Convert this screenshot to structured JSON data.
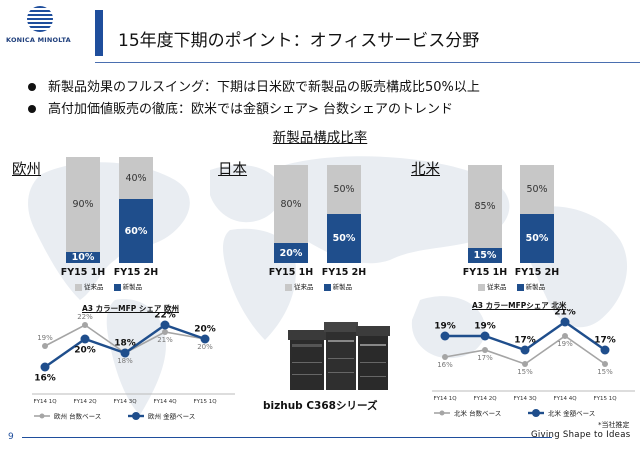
{
  "logo": {
    "brand": "KONICA MINOLTA"
  },
  "title": "15年度下期のポイント：オフィスサービス分野",
  "bullets": [
    "新製品効果のフルスイング：下期は日米欧で新製品の販売構成比50%以上",
    "高付加価値販売の徹底：欧米では金額シェア> 台数シェアのトレンド"
  ],
  "subtitle": "新製品構成比率",
  "colors": {
    "new": "#1f4e8c",
    "old": "#c7c7c7",
    "accent": "#1f4e9c",
    "light_line": "#a5a5a5"
  },
  "bar_legend": {
    "old": "従来品",
    "new": "新製品"
  },
  "regions": [
    {
      "name": "欧州",
      "bars": [
        {
          "label": "FY15 1H",
          "old": "90%",
          "new": "10%",
          "new_share": 10
        },
        {
          "label": "FY15 2H",
          "old": "40%",
          "new": "60%",
          "new_share": 60
        }
      ]
    },
    {
      "name": "日本",
      "bars": [
        {
          "label": "FY15 1H",
          "old": "80%",
          "new": "20%",
          "new_share": 20
        },
        {
          "label": "FY15 2H",
          "old": "50%",
          "new": "50%",
          "new_share": 50
        }
      ]
    },
    {
      "name": "北米",
      "bars": [
        {
          "label": "FY15 1H",
          "old": "85%",
          "new": "15%",
          "new_share": 15
        },
        {
          "label": "FY15 2H",
          "old": "50%",
          "new": "50%",
          "new_share": 50
        }
      ]
    }
  ],
  "chart_data": [
    {
      "type": "line",
      "title": "A3 カラーMFP シェア 欧州",
      "categories": [
        "FY14 1Q",
        "FY14 2Q",
        "FY14 3Q",
        "FY14 4Q",
        "FY15 1Q"
      ],
      "series": [
        {
          "name": "欧州 台数ベース",
          "values": [
            19,
            22,
            18,
            21,
            20
          ],
          "labels": [
            "19%",
            "22%",
            "18%",
            "21%",
            "20%"
          ]
        },
        {
          "name": "欧州 金額ベース",
          "values": [
            16,
            20,
            18,
            22,
            20
          ],
          "labels": [
            "16%",
            "20%",
            "18%",
            "22%",
            "20%"
          ]
        }
      ]
    },
    {
      "type": "line",
      "title": "A3 カラーMFPシェア 北米",
      "categories": [
        "FY14 1Q",
        "FY14 2Q",
        "FY14 3Q",
        "FY14 4Q",
        "FY15 1Q"
      ],
      "series": [
        {
          "name": "北米 台数ベース",
          "values": [
            16,
            17,
            15,
            19,
            15
          ],
          "labels": [
            "16%",
            "17%",
            "15%",
            "19%",
            "15%"
          ]
        },
        {
          "name": "北米 金額ベース",
          "values": [
            19,
            19,
            17,
            21,
            17
          ],
          "labels": [
            "19%",
            "19%",
            "17%",
            "21%",
            "17%"
          ]
        }
      ]
    }
  ],
  "note": "*当社推定",
  "product": "bizhub C368シリーズ",
  "footer": {
    "page": "9",
    "tagline": "Giving Shape to Ideas"
  }
}
